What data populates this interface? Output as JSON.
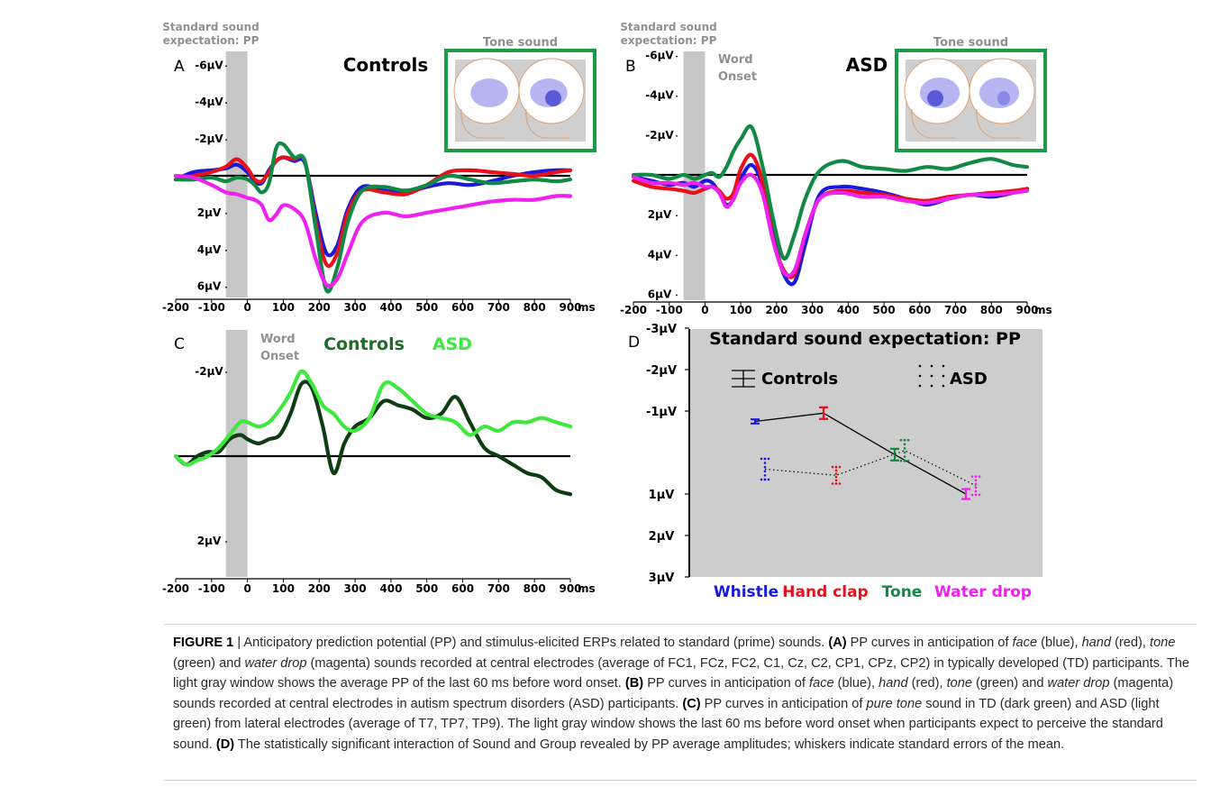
{
  "figure_number": "FIGURE 1",
  "caption": [
    {
      "t": "FIGURE 1",
      "b": true
    },
    {
      "t": "  |  Anticipatory prediction potential (PP) and stimulus-elicited ERPs related to standard (prime) sounds. "
    },
    {
      "t": "(A)",
      "b": true
    },
    {
      "t": " PP curves in anticipation of "
    },
    {
      "t": "face",
      "i": true
    },
    {
      "t": " (blue), "
    },
    {
      "t": "hand",
      "i": true
    },
    {
      "t": " (red), "
    },
    {
      "t": "tone",
      "i": true
    },
    {
      "t": " (green) and "
    },
    {
      "t": "water drop",
      "i": true
    },
    {
      "t": " (magenta) sounds recorded at central electrodes (average of FC1, FCz, FC2, C1, Cz, C2, CP1, CPz, CP2) in typically developed (TD) participants. The light gray window shows the average PP of the last 60 ms before word onset. "
    },
    {
      "t": "(B)",
      "b": true
    },
    {
      "t": " PP curves in anticipation of "
    },
    {
      "t": "face",
      "i": true
    },
    {
      "t": " (blue), "
    },
    {
      "t": "hand",
      "i": true
    },
    {
      "t": " (red), "
    },
    {
      "t": "tone",
      "i": true
    },
    {
      "t": " (green) and "
    },
    {
      "t": "water drop",
      "i": true
    },
    {
      "t": " (magenta) sounds recorded at central electrodes in autism spectrum disorders (ASD) participants. "
    },
    {
      "t": "(C)",
      "b": true
    },
    {
      "t": " PP curves in anticipation of "
    },
    {
      "t": "pure tone",
      "i": true
    },
    {
      "t": " sound in TD (dark green) and ASD (light green) from lateral electrodes (average of T7, TP7, TP9). The light gray window shows the last 60 ms before word onset when participants expect to perceive the standard sound. "
    },
    {
      "t": "(D)",
      "b": true
    },
    {
      "t": " The statistically significant interaction of Sound and Group revealed by PP average amplitudes; whiskers indicate standard errors of the mean."
    }
  ],
  "colors": {
    "blue": "#1a1adc",
    "red": "#e8101a",
    "green": "#128a45",
    "magenta": "#ee22ee",
    "td_dark_green": "#0e3d14",
    "asd_light_green": "#3ee83e",
    "gray_window": "#c6c6c6",
    "inset_border": "#1b9a47",
    "inset_text": "#909090",
    "panel_d_bg": "#cdcdcd"
  },
  "chart_data": [
    {
      "panel": "A",
      "type": "line",
      "title": "Controls",
      "top_note": [
        "Standard sound",
        "expectation: PP"
      ],
      "inset_label": "Tone sound",
      "x_ticks": [
        "-200",
        "-100",
        "0",
        "100",
        "200",
        "300",
        "400",
        "500",
        "600",
        "700",
        "800",
        "900"
      ],
      "x_unit": "ms",
      "y_ticks": [
        "-6µV",
        "-4µV",
        "-2µV",
        "2µV",
        "4µV",
        "6µV"
      ],
      "xlim": [
        -200,
        900
      ],
      "ylim": [
        -6.8,
        6.6
      ],
      "y_negative_up": true,
      "gray_window": [
        -60,
        0
      ],
      "x": [
        -200,
        -150,
        -100,
        -60,
        -30,
        0,
        20,
        40,
        60,
        80,
        100,
        130,
        160,
        190,
        220,
        250,
        280,
        320,
        380,
        440,
        500,
        560,
        620,
        680,
        740,
        800,
        860,
        900
      ],
      "series": [
        {
          "color": "blue",
          "values": [
            0.2,
            -0.2,
            -0.3,
            -0.4,
            -0.6,
            -0.2,
            0.3,
            0.4,
            -0.3,
            -0.8,
            -1.0,
            -0.8,
            -0.7,
            2.0,
            4.2,
            3.8,
            1.8,
            0.6,
            0.8,
            0.9,
            0.6,
            0.4,
            0.5,
            0.3,
            0.0,
            -0.2,
            -0.3,
            -0.3
          ]
        },
        {
          "color": "red",
          "values": [
            0.2,
            0.0,
            -0.2,
            -0.5,
            -0.9,
            -0.4,
            0.2,
            0.3,
            -0.2,
            -0.8,
            -1.0,
            -0.9,
            -0.8,
            2.5,
            4.8,
            4.2,
            2.0,
            0.8,
            0.9,
            1.0,
            0.5,
            -0.2,
            -0.3,
            -0.2,
            -0.1,
            0.0,
            -0.2,
            -0.3
          ]
        },
        {
          "color": "green",
          "values": [
            0.2,
            0.2,
            0.1,
            0.3,
            0.1,
            0.2,
            0.5,
            0.9,
            0.4,
            -1.5,
            -1.7,
            -1.0,
            -0.8,
            2.8,
            6.2,
            5.0,
            2.5,
            0.8,
            0.6,
            0.8,
            0.5,
            0.0,
            0.2,
            0.4,
            0.3,
            0.2,
            0.3,
            0.2
          ]
        },
        {
          "color": "magenta",
          "values": [
            0.0,
            0.1,
            0.5,
            0.9,
            1.0,
            1.2,
            1.3,
            1.6,
            2.4,
            2.1,
            1.6,
            1.8,
            2.5,
            4.5,
            5.9,
            5.6,
            4.2,
            2.5,
            2.0,
            2.2,
            2.0,
            1.8,
            1.6,
            1.4,
            1.3,
            1.3,
            1.1,
            1.1
          ]
        }
      ]
    },
    {
      "panel": "B",
      "type": "line",
      "title": "ASD",
      "top_note": [
        "Standard sound",
        "expectation: PP"
      ],
      "onset_label": [
        "Word",
        "Onset"
      ],
      "inset_label": "Tone sound",
      "x_ticks": [
        "-200",
        "-100",
        "0",
        "100",
        "200",
        "300",
        "400",
        "500",
        "600",
        "700",
        "800",
        "900"
      ],
      "x_unit": "ms",
      "y_ticks": [
        "-6µV",
        "-4µV",
        "-2µV",
        "2µV",
        "4µV",
        "6µV"
      ],
      "xlim": [
        -200,
        900
      ],
      "ylim": [
        -6.5,
        6.3
      ],
      "y_negative_up": true,
      "gray_window": [
        -60,
        0
      ],
      "x": [
        -200,
        -150,
        -100,
        -60,
        -30,
        0,
        20,
        40,
        60,
        80,
        100,
        130,
        160,
        190,
        220,
        250,
        280,
        320,
        380,
        440,
        500,
        560,
        620,
        680,
        740,
        800,
        860,
        900
      ],
      "series": [
        {
          "color": "blue",
          "values": [
            0.1,
            0.3,
            0.5,
            0.4,
            0.6,
            0.3,
            0.4,
            0.9,
            1.5,
            1.2,
            0.2,
            -0.5,
            0.5,
            3.0,
            5.0,
            5.4,
            3.5,
            1.0,
            0.6,
            0.7,
            0.9,
            1.2,
            1.5,
            1.2,
            1.0,
            1.1,
            0.9,
            0.7
          ]
        },
        {
          "color": "red",
          "values": [
            0.3,
            0.6,
            0.7,
            0.8,
            0.9,
            0.7,
            0.6,
            0.8,
            1.2,
            0.9,
            -0.3,
            -1.0,
            0.3,
            3.2,
            4.8,
            5.0,
            3.0,
            1.2,
            0.8,
            0.9,
            1.0,
            1.2,
            1.3,
            1.1,
            1.0,
            0.9,
            0.8,
            0.7
          ]
        },
        {
          "color": "green",
          "values": [
            0.0,
            0.0,
            0.2,
            0.0,
            0.2,
            0.0,
            -0.1,
            0.1,
            -0.4,
            -1.2,
            -1.8,
            -2.4,
            -0.5,
            2.2,
            4.2,
            3.0,
            1.2,
            -0.2,
            -0.7,
            -0.4,
            -0.3,
            -0.2,
            -0.4,
            -0.3,
            -0.6,
            -0.8,
            -0.5,
            -0.4
          ]
        },
        {
          "color": "magenta",
          "values": [
            0.1,
            0.4,
            0.4,
            0.5,
            0.4,
            0.6,
            0.6,
            0.9,
            1.6,
            1.2,
            0.4,
            0.0,
            0.9,
            3.3,
            4.9,
            4.8,
            3.0,
            1.2,
            0.9,
            1.1,
            1.1,
            1.3,
            1.4,
            1.2,
            1.0,
            1.0,
            0.9,
            0.8
          ]
        }
      ]
    },
    {
      "panel": "C",
      "type": "line",
      "title_parts": [
        "Controls",
        "ASD"
      ],
      "onset_label": [
        "Word",
        "Onset"
      ],
      "x_ticks": [
        "-200",
        "-100",
        "0",
        "100",
        "200",
        "300",
        "400",
        "500",
        "600",
        "700",
        "800",
        "900"
      ],
      "x_unit": "ms",
      "y_ticks": [
        "-2µV",
        "2µV"
      ],
      "xlim": [
        -200,
        900
      ],
      "ylim": [
        -2.9,
        2.85
      ],
      "y_negative_up": true,
      "gray_window": [
        -60,
        0
      ],
      "x": [
        -200,
        -170,
        -140,
        -110,
        -80,
        -50,
        -20,
        0,
        30,
        60,
        90,
        120,
        150,
        180,
        210,
        240,
        270,
        300,
        340,
        380,
        420,
        460,
        500,
        540,
        580,
        620,
        660,
        700,
        740,
        780,
        820,
        860,
        900
      ],
      "series": [
        {
          "name": "Controls",
          "color": "td_dark_green",
          "values": [
            0.0,
            0.2,
            0.0,
            -0.1,
            -0.1,
            -0.4,
            -0.5,
            -0.4,
            -0.3,
            -0.4,
            -0.5,
            -1.0,
            -1.7,
            -1.6,
            -0.7,
            0.4,
            -0.3,
            -0.7,
            -0.9,
            -1.3,
            -1.2,
            -1.1,
            -0.9,
            -1.0,
            -1.4,
            -0.8,
            -0.2,
            0.0,
            0.2,
            0.4,
            0.5,
            0.8,
            0.9
          ]
        },
        {
          "name": "ASD",
          "color": "asd_light_green",
          "values": [
            0.0,
            0.2,
            0.1,
            0.0,
            -0.2,
            -0.5,
            -0.8,
            -0.8,
            -0.7,
            -0.8,
            -1.1,
            -1.5,
            -2.0,
            -1.7,
            -1.2,
            -1.0,
            -0.7,
            -0.6,
            -0.9,
            -1.7,
            -1.6,
            -1.3,
            -1.0,
            -0.9,
            -0.8,
            -0.5,
            -0.7,
            -0.6,
            -0.8,
            -0.8,
            -0.9,
            -0.8,
            -0.7
          ]
        }
      ]
    },
    {
      "panel": "D",
      "type": "line",
      "title": "Standard sound expectation: PP",
      "categories": [
        "Whistle",
        "Hand clap",
        "Tone",
        "Water drop"
      ],
      "category_colors": [
        "blue",
        "red",
        "green",
        "magenta"
      ],
      "y_ticks": [
        "-3µV",
        "-2µV",
        "-1µV",
        "1µV",
        "2µV",
        "3µV"
      ],
      "ylim": [
        -3,
        3
      ],
      "y_negative_up": true,
      "legend": [
        "Controls",
        "ASD"
      ],
      "series": [
        {
          "name": "Controls",
          "style": "solid",
          "values": [
            -0.75,
            -0.95,
            0.05,
            1.0
          ],
          "sem": [
            0.05,
            0.14,
            0.14,
            0.12
          ]
        },
        {
          "name": "ASD",
          "style": "dotted",
          "values": [
            0.4,
            0.55,
            -0.05,
            0.8
          ],
          "sem": [
            0.25,
            0.2,
            0.25,
            0.22
          ]
        }
      ]
    }
  ]
}
